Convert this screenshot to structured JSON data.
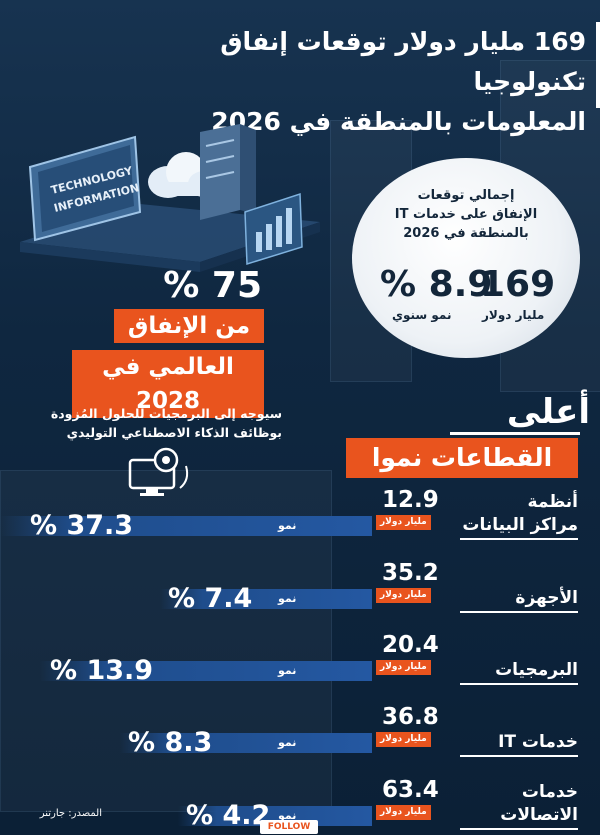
{
  "title": {
    "line1": "169 مليار دولار توقعات إنفاق تكنولوجيا",
    "line2": "المعلومات بالمنطقة في 2026"
  },
  "illustration": {
    "screen_text_1": "TECHNOLOGY",
    "screen_text_2": "INFORMATION"
  },
  "circle": {
    "caption_1": "إجمالي توقعات",
    "caption_2": "الإنفاق على خدمات IT",
    "caption_3": "بالمنطقة في 2026",
    "total_value": "169",
    "total_unit": "مليار دولار",
    "growth_value": "8.9 %",
    "growth_unit": "نمو سنوي"
  },
  "global_share": {
    "percent": "75 %",
    "line1": "من الإنفاق",
    "line2": "العالمي في 2028",
    "note_1": "سيوجه إلى البرمجيات للحلول المُزودة",
    "note_2": "بوظائف الذكاء الاصطناعي التوليدي"
  },
  "sectors_heading": {
    "line1": "أعلى",
    "line2": "القطاعات نموا"
  },
  "growth_label": "نمو",
  "unit_label": "مليار دولار",
  "chart_data": {
    "type": "table",
    "columns": [
      "sector",
      "spending_billion_usd",
      "growth_percent"
    ],
    "rows": [
      {
        "sector_line1": "أنظمة",
        "sector_line2": "مراكز البيانات",
        "value": "12.9",
        "growth": "37.3 %"
      },
      {
        "sector_line1": "",
        "sector_line2": "الأجهزة",
        "value": "35.2",
        "growth": "7.4 %"
      },
      {
        "sector_line1": "",
        "sector_line2": "البرمجيات",
        "value": "20.4",
        "growth": "13.9 %"
      },
      {
        "sector_line1": "",
        "sector_line2": "خدمات IT",
        "value": "36.8",
        "growth": "8.3 %"
      },
      {
        "sector_line1": "خدمات",
        "sector_line2": "الاتصالات",
        "value": "63.4",
        "growth": "4.2 %"
      }
    ]
  },
  "source": "المصدر: جارتنر",
  "logo": "FOLLOW",
  "colors": {
    "accent": "#e9541e",
    "background": "#0f2740",
    "bar": "#2458a2"
  }
}
